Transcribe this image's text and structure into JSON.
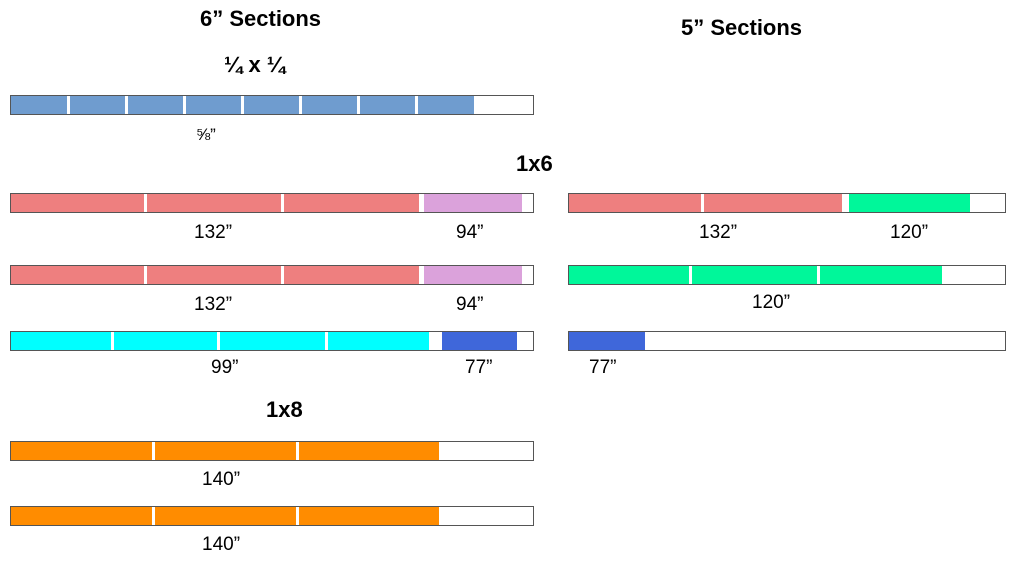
{
  "headings": {
    "six_inch": "6” Sections",
    "five_inch": "5” Sections",
    "quarter": "¼ x ¼",
    "one_by_six": "1x6",
    "one_by_eight": "1x8"
  },
  "colors": {
    "steel_blue": "#6f9ccf",
    "salmon": "#ee7f7f",
    "violet": "#dba2db",
    "spring_green": "#00f79a",
    "cyan": "#00ffff",
    "royal_blue": "#3f67da",
    "orange": "#ff8c00"
  },
  "labels": {
    "quarter": "⅝”",
    "r1_left": "132”",
    "r1_right": "94”",
    "r2_left": "132”",
    "r2_right": "94”",
    "r3_left": "99”",
    "r3_right": "77”",
    "r4": "140”",
    "r5": "140”",
    "five_r1_left": "132”",
    "five_r1_right": "120”",
    "five_r2": "120”",
    "five_r3": "77”"
  }
}
